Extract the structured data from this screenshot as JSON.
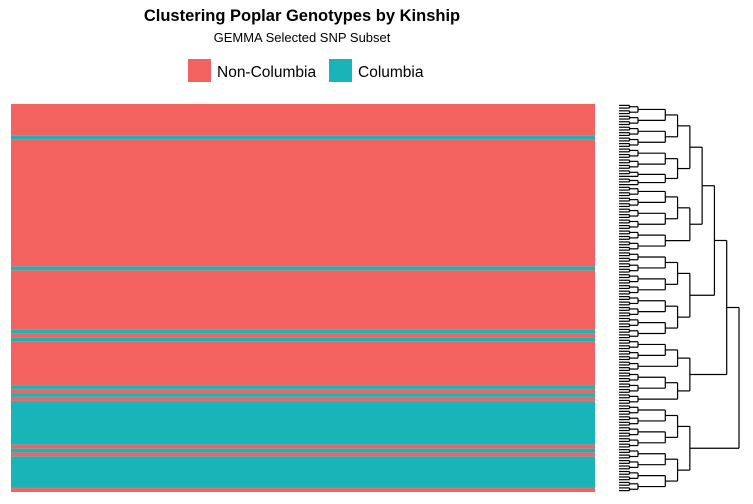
{
  "chart_data": {
    "type": "heatmap",
    "title": "Clustering Poplar Genotypes by Kinship",
    "subtitle": "GEMMA Selected SNP Subset",
    "xlabel": "",
    "ylabel": "",
    "grid": false,
    "legend": {
      "placement": "top",
      "entries": [
        {
          "name": "Non-Columbia",
          "color": "#F8766D"
        },
        {
          "name": "Columbia",
          "color": "#00BFC4"
        }
      ]
    },
    "colors": {
      "Non-Columbia": "#F3625E",
      "Columbia": "#19B4B8",
      "separator": "#9A9A9A",
      "dendrogram": "#000000"
    },
    "bands": [
      {
        "group": "Non-Columbia",
        "start": 0,
        "end": 8
      },
      {
        "group": "Columbia",
        "start": 8,
        "end": 9
      },
      {
        "group": "Non-Columbia",
        "start": 9,
        "end": 41
      },
      {
        "group": "Columbia",
        "start": 41,
        "end": 42
      },
      {
        "group": "Non-Columbia",
        "start": 42,
        "end": 57
      },
      {
        "group": "Columbia",
        "start": 57,
        "end": 58
      },
      {
        "group": "Non-Columbia",
        "start": 58,
        "end": 59
      },
      {
        "group": "Columbia",
        "start": 59,
        "end": 60
      },
      {
        "group": "Non-Columbia",
        "start": 60,
        "end": 71
      },
      {
        "group": "Columbia",
        "start": 71,
        "end": 72
      },
      {
        "group": "Non-Columbia",
        "start": 72,
        "end": 73
      },
      {
        "group": "Columbia",
        "start": 73,
        "end": 74
      },
      {
        "group": "Non-Columbia",
        "start": 74,
        "end": 75
      },
      {
        "group": "Columbia",
        "start": 75,
        "end": 86
      },
      {
        "group": "Non-Columbia",
        "start": 86,
        "end": 87
      },
      {
        "group": "Columbia",
        "start": 87,
        "end": 88
      },
      {
        "group": "Non-Columbia",
        "start": 88,
        "end": 89
      },
      {
        "group": "Columbia",
        "start": 89,
        "end": 97
      },
      {
        "group": "Non-Columbia",
        "start": 97,
        "end": 98
      }
    ],
    "n_genotypes": 98,
    "dendrogram": {
      "n_leaves": 98,
      "tree": [
        [
          [
            [
              [
                [
                  [
                    [
                      4
                    ],
                    [
                      4
                    ]
                  ],
                  [
                    [
                      4
                    ],
                    [
                      4
                    ]
                  ]
                ],
                [
                  [
                    [
                      4
                    ],
                    [
                      4
                    ]
                  ],
                  [
                    [
                      3
                    ],
                    [
                      3
                    ]
                  ]
                ]
              ],
              [
                [
                  [
                    [
                      4
                    ],
                    [
                      4
                    ]
                  ],
                  [
                    [
                      4
                    ],
                    [
                      4
                    ]
                  ]
                ],
                [
                  [
                    4
                  ],
                  [
                    4
                  ]
                ]
              ]
            ],
            [
              [
                [
                  [
                    4
                  ],
                  [
                    4
                  ]
                ],
                [
                  [
                    4
                  ],
                  [
                    4
                  ]
                ]
              ],
              [
                [
                  [
                    4
                  ],
                  [
                    4
                  ]
                ],
                [
                  [
                    4
                  ],
                  [
                    4
                  ]
                ]
              ]
            ]
          ],
          [
            [
              [
                [
                  4
                ],
                [
                  4
                ]
              ],
              [
                4
              ]
            ],
            [
              [
                [
                  4
                ],
                [
                  4
                ]
              ],
              [
                4
              ]
            ]
          ]
        ],
        [
          [
            [
              [
                4
              ],
              [
                4
              ]
            ],
            [
              [
                4
              ],
              [
                4
              ]
            ]
          ],
          [
            [
              [
                4
              ],
              [
                4
              ]
            ],
            [
              [
                4
              ],
              [
                4
              ]
            ]
          ]
        ]
      ]
    }
  }
}
